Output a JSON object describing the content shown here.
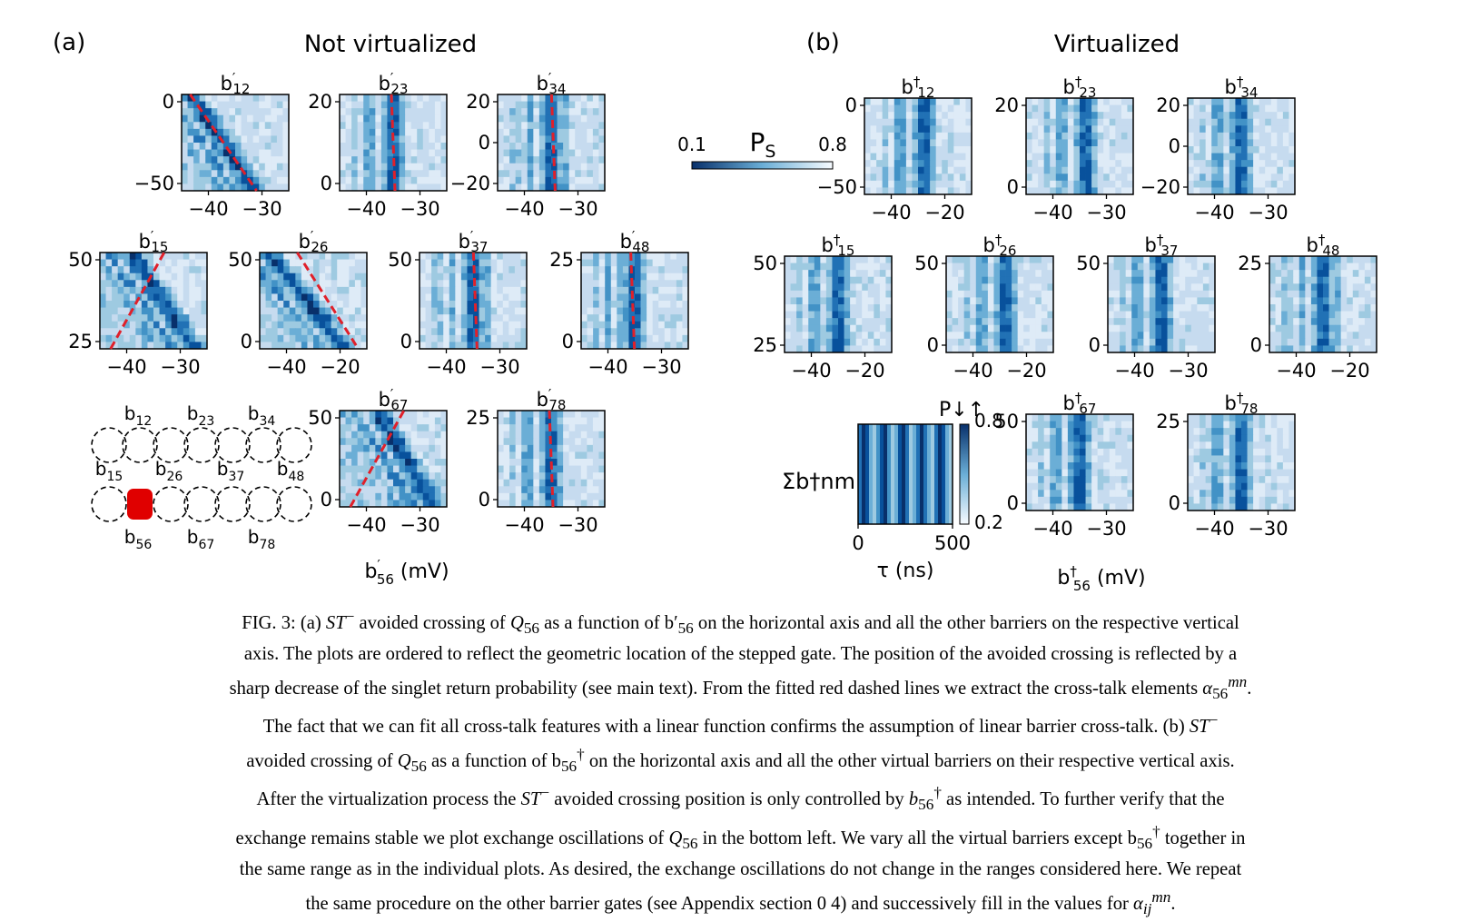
{
  "panel_a": {
    "label": "(a)",
    "title": "Not virtualized",
    "xlabel": "b′56  (mV)"
  },
  "panel_b": {
    "label": "(b)",
    "title": "Virtualized",
    "xlabel": "b†56 (mV)"
  },
  "colorbar": {
    "label": "PS",
    "min": "0.1",
    "max": "0.8",
    "colormap": "Blues"
  },
  "exchange_plot": {
    "ylabel": "Σb†nm",
    "xlabel": "τ (ns)",
    "cbar_label": "P↓↑",
    "cbar_max": "0.8",
    "cbar_min": "0.2",
    "xticks": [
      "0",
      "500"
    ]
  },
  "gate_diagram": {
    "labels": [
      "b12",
      "b23",
      "b34",
      "b15",
      "b26",
      "b37",
      "b48",
      "b56",
      "b67",
      "b78"
    ],
    "highlight": "b56",
    "highlight_color": "#e00000"
  },
  "chart_data": [
    {
      "type": "heatmap",
      "panel": "a",
      "title": "b′12",
      "yticks": [
        "0",
        "−50"
      ],
      "xticks": [
        "−40",
        "−30"
      ],
      "fit_line": true
    },
    {
      "type": "heatmap",
      "panel": "a",
      "title": "b′23",
      "yticks": [
        "20",
        "0"
      ],
      "xticks": [
        "−40",
        "−30"
      ],
      "fit_line": true
    },
    {
      "type": "heatmap",
      "panel": "a",
      "title": "b′34",
      "yticks": [
        "20",
        "0",
        "−20"
      ],
      "xticks": [
        "−40",
        "−30"
      ],
      "fit_line": true
    },
    {
      "type": "heatmap",
      "panel": "a",
      "title": "b′15",
      "yticks": [
        "50",
        "25"
      ],
      "xticks": [
        "−40",
        "−30"
      ],
      "fit_line": true
    },
    {
      "type": "heatmap",
      "panel": "a",
      "title": "b′26",
      "yticks": [
        "50",
        "0"
      ],
      "xticks": [
        "−40",
        "−20"
      ],
      "fit_line": true
    },
    {
      "type": "heatmap",
      "panel": "a",
      "title": "b′37",
      "yticks": [
        "50",
        "0"
      ],
      "xticks": [
        "−40",
        "−30"
      ],
      "fit_line": true
    },
    {
      "type": "heatmap",
      "panel": "a",
      "title": "b′48",
      "yticks": [
        "25",
        "0"
      ],
      "xticks": [
        "−40",
        "−30"
      ],
      "fit_line": true
    },
    {
      "type": "heatmap",
      "panel": "a",
      "title": "b′67",
      "yticks": [
        "50",
        "0"
      ],
      "xticks": [
        "−40",
        "−30"
      ],
      "fit_line": true
    },
    {
      "type": "heatmap",
      "panel": "a",
      "title": "b′78",
      "yticks": [
        "25",
        "0"
      ],
      "xticks": [
        "−40",
        "−30"
      ],
      "fit_line": true
    },
    {
      "type": "heatmap",
      "panel": "b",
      "title": "b†12",
      "yticks": [
        "0",
        "−50"
      ],
      "xticks": [
        "−40",
        "−20"
      ]
    },
    {
      "type": "heatmap",
      "panel": "b",
      "title": "b†23",
      "yticks": [
        "20",
        "0"
      ],
      "xticks": [
        "−40",
        "−30"
      ]
    },
    {
      "type": "heatmap",
      "panel": "b",
      "title": "b†34",
      "yticks": [
        "20",
        "0",
        "−20"
      ],
      "xticks": [
        "−40",
        "−30"
      ]
    },
    {
      "type": "heatmap",
      "panel": "b",
      "title": "b†15",
      "yticks": [
        "50",
        "25"
      ],
      "xticks": [
        "−40",
        "−20"
      ]
    },
    {
      "type": "heatmap",
      "panel": "b",
      "title": "b†26",
      "yticks": [
        "50",
        "0"
      ],
      "xticks": [
        "−40",
        "−20"
      ]
    },
    {
      "type": "heatmap",
      "panel": "b",
      "title": "b†37",
      "yticks": [
        "50",
        "0"
      ],
      "xticks": [
        "−40",
        "−30"
      ]
    },
    {
      "type": "heatmap",
      "panel": "b",
      "title": "b†48",
      "yticks": [
        "25",
        "0"
      ],
      "xticks": [
        "−40",
        "−20"
      ]
    },
    {
      "type": "heatmap",
      "panel": "b",
      "title": "b†67",
      "yticks": [
        "50",
        "0"
      ],
      "xticks": [
        "−40",
        "−30"
      ]
    },
    {
      "type": "heatmap",
      "panel": "b",
      "title": "b†78",
      "yticks": [
        "25",
        "0"
      ],
      "xticks": [
        "−40",
        "−30"
      ]
    }
  ],
  "caption": {
    "p1": "FIG. 3: (a) ST− avoided crossing of Q56 as a function of b′56 on the horizontal axis and all the other barriers on the respective vertical axis. The plots are ordered to reflect the geometric location of the stepped gate. The position of the avoided crossing is reflected by a sharp decrease of the singlet return probability (see main text). From the fitted red dashed lines we extract the cross-talk elements α56mn.",
    "p2": "The fact that we can fit all cross-talk features with a linear function confirms the assumption of linear barrier cross-talk. (b) ST− avoided crossing of Q56 as a function of b†56 on the horizontal axis and all the other virtual barriers on their respective vertical axis.",
    "p3": "After the virtualization process the ST− avoided crossing position is only controlled by b†56 as intended. To further verify that the exchange remains stable we plot exchange oscillations of Q56 in the bottom left. We vary all the virtual barriers except b†56 together in the same range as in the individual plots. As desired, the exchange oscillations do not change in the ranges considered here. We repeat the same procedure on the other barrier gates (see Appendix section 0 4) and successively fill in the values for αijmn."
  }
}
